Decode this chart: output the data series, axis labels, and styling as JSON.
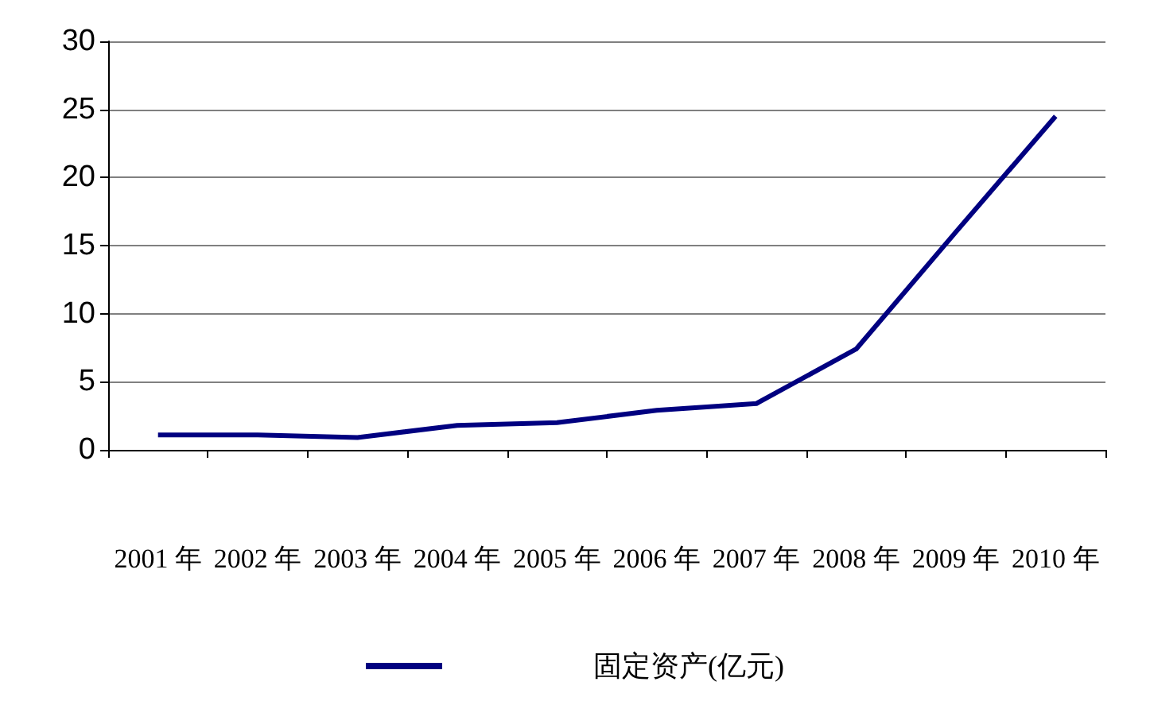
{
  "chart_data": {
    "type": "line",
    "categories": [
      "2001 年",
      "2002 年",
      "2003 年",
      "2004 年",
      "2005 年",
      "2006 年",
      "2007 年",
      "2008 年",
      "2009 年",
      "2010 年"
    ],
    "series": [
      {
        "name": "固定资产(亿元)",
        "color": "#000080",
        "values": [
          1.1,
          1.1,
          0.9,
          1.8,
          2.0,
          2.9,
          3.4,
          7.4,
          16,
          24.5
        ]
      }
    ],
    "ylim": [
      0,
      30
    ],
    "yticks": [
      0,
      5,
      10,
      15,
      20,
      25,
      30
    ],
    "grid": "y",
    "legend": "bottom",
    "marker": "none",
    "line_style": "solid"
  }
}
